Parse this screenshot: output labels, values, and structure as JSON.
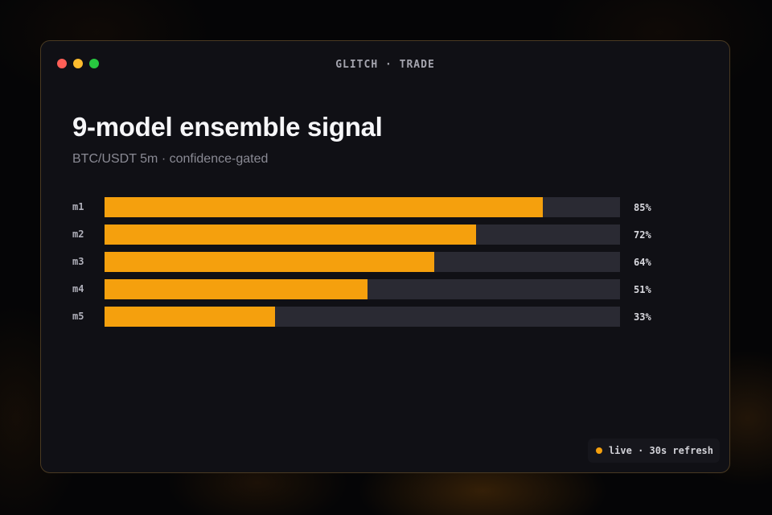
{
  "window": {
    "title": "GLITCH · TRADE"
  },
  "header": {
    "title": "9-model ensemble signal",
    "subtitle": "BTC/USDT 5m · confidence-gated"
  },
  "colors": {
    "accent": "#f5a00d",
    "track": "#2a2a33",
    "background": "#101015"
  },
  "models": [
    {
      "label": "m1",
      "value": 85,
      "value_text": "85%"
    },
    {
      "label": "m2",
      "value": 72,
      "value_text": "72%"
    },
    {
      "label": "m3",
      "value": 64,
      "value_text": "64%"
    },
    {
      "label": "m4",
      "value": 51,
      "value_text": "51%"
    },
    {
      "label": "m5",
      "value": 33,
      "value_text": "33%"
    }
  ],
  "status": {
    "text": "live · 30s refresh"
  }
}
